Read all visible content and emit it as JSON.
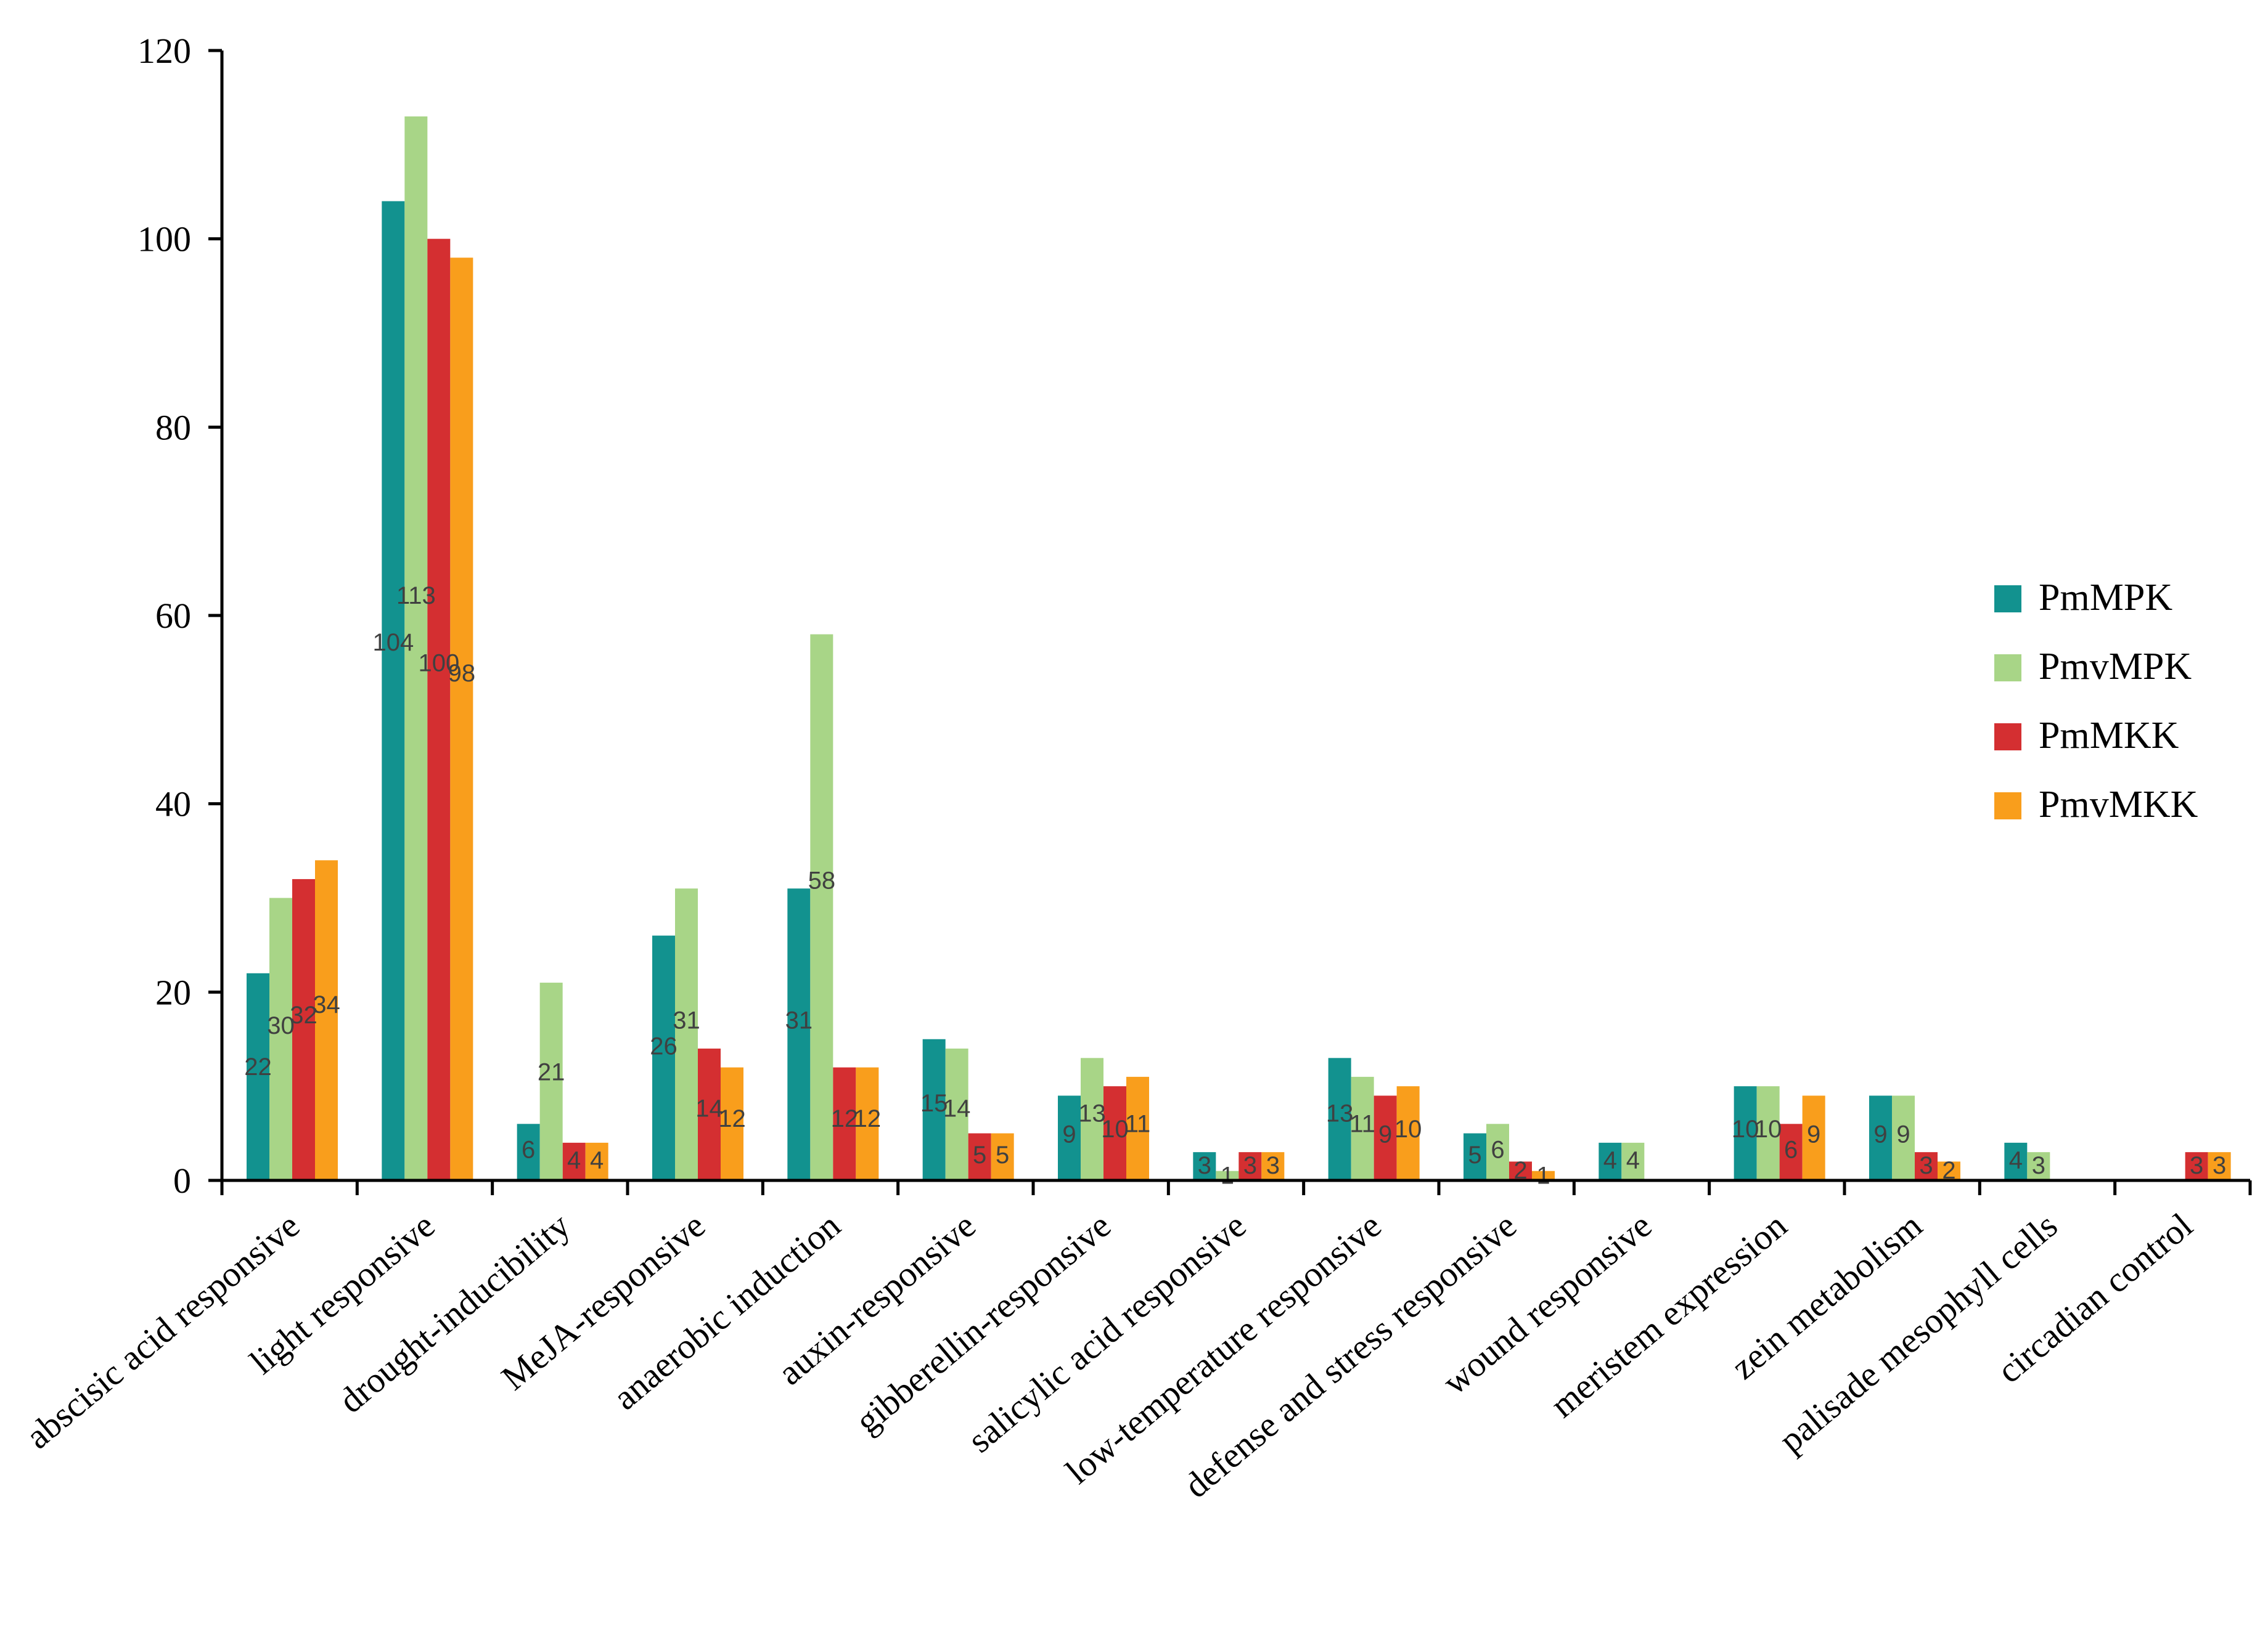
{
  "chart_data": {
    "type": "bar",
    "title": "",
    "xlabel": "",
    "ylabel": "",
    "ylim": [
      0,
      120
    ],
    "yticks": [
      0,
      20,
      40,
      60,
      80,
      100,
      120
    ],
    "legend_position": "right",
    "categories": [
      "abscisic acid responsive",
      "light responsive",
      "drought-inducibility",
      "MeJA-responsive",
      "anaerobic induction",
      "auxin-responsive",
      "gibberellin-responsive",
      "salicylic acid responsive",
      "low-temperature responsive",
      "defense and stress responsive",
      "wound responsive",
      "meristem expression",
      "zein metabolism",
      "palisade mesophyll cells",
      "circadian control"
    ],
    "series": [
      {
        "name": "PmMPK",
        "color": "#12928f",
        "values": [
          22,
          104,
          6,
          26,
          31,
          15,
          9,
          3,
          13,
          5,
          4,
          10,
          9,
          4,
          null
        ]
      },
      {
        "name": "PmvMPK",
        "color": "#a8d587",
        "values": [
          30,
          113,
          null,
          31,
          58,
          14,
          13,
          1,
          11,
          6,
          4,
          10,
          9,
          3,
          null
        ]
      },
      {
        "name": "PmMKK",
        "color": "#d42f31",
        "values": [
          32,
          100,
          4,
          14,
          12,
          5,
          10,
          3,
          9,
          2,
          null,
          6,
          3,
          null,
          3
        ]
      },
      {
        "name": "PmvMKK",
        "color": "#f99e1c",
        "values": [
          34,
          98,
          4,
          12,
          12,
          5,
          11,
          3,
          10,
          1,
          null,
          9,
          2,
          null,
          3
        ]
      }
    ],
    "bar_heights_note": "",
    "extra_bars": [
      {
        "category": "drought-inducibility",
        "series": "PmvMPK",
        "value": 21
      }
    ]
  }
}
